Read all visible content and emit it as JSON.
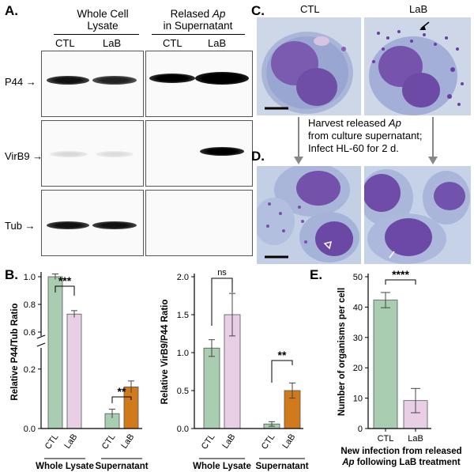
{
  "panel_a": {
    "label": "A.",
    "group1_title_line1": "Whole Cell",
    "group1_title_line2": "Lysate",
    "group2_title_line1": "Relased",
    "group2_title_ap": "Ap",
    "group2_title_line2": "in Supernatant",
    "lane_ctl": "CTL",
    "lane_lab": "LaB",
    "rows": [
      {
        "label": "P44 →"
      },
      {
        "label": "VirB9 →"
      },
      {
        "label": "Tub →"
      }
    ]
  },
  "panel_b": {
    "label": "B.",
    "chart_data": [
      {
        "type": "bar",
        "ylabel": "Relative P44/Tub Ratio",
        "y_ticks_upper": [
          "1.0",
          "0.8",
          "0.6"
        ],
        "y_ticks_lower": [
          "0.2",
          "0.0"
        ],
        "y_axis_break": true,
        "groups": [
          "Whole Lysate",
          "Supernatant"
        ],
        "categories": [
          "CTL",
          "LaB",
          "CTL",
          "LaB"
        ],
        "values": [
          1.0,
          0.73,
          0.05,
          0.14
        ],
        "errors": [
          0.02,
          0.025,
          0.015,
          0.02
        ],
        "colors": [
          "#a9cdb0",
          "#e8cfe6",
          "#a9cdb0",
          "#d07a1c"
        ],
        "significance": [
          "***",
          "**"
        ]
      },
      {
        "type": "bar",
        "ylabel": "Relative VirB9/P44 Ratio",
        "y_ticks": [
          "0.0",
          "0.5",
          "1.0",
          "1.5",
          "2.0"
        ],
        "ylim": [
          0,
          2.0
        ],
        "groups": [
          "Whole Lysate",
          "Supernatant"
        ],
        "categories": [
          "CTL",
          "LaB",
          "CTL",
          "LaB"
        ],
        "values": [
          1.06,
          1.5,
          0.06,
          0.5
        ],
        "errors": [
          0.11,
          0.28,
          0.03,
          0.1
        ],
        "colors": [
          "#a9cdb0",
          "#e8cfe6",
          "#a9cdb0",
          "#d07a1c"
        ],
        "significance": [
          "ns",
          "**"
        ]
      },
      {
        "type": "bar",
        "ylabel": "Number of organisms per cell",
        "y_ticks": [
          "0",
          "10",
          "20",
          "30",
          "40",
          "50"
        ],
        "ylim": [
          0,
          50
        ],
        "categories": [
          "CTL",
          "LaB"
        ],
        "values": [
          42.3,
          9.2
        ],
        "errors": [
          2.5,
          4.0
        ],
        "colors": [
          "#a9cdb0",
          "#e8cfe6"
        ],
        "significance": [
          "****"
        ],
        "caption_line1": "New infection from released",
        "caption_line2_ap": "Ap",
        "caption_line2_rest": "following LaB treatment"
      }
    ]
  },
  "panel_c": {
    "label": "C.",
    "ctl": "CTL",
    "lab": "LaB",
    "arrow_text_line1": "Harvest released",
    "arrow_text_ap": "Ap",
    "arrow_text_line2": "from culture supernatant;",
    "arrow_text_line3": "Infect HL-60 for 2 d."
  },
  "panel_d": {
    "label": "D."
  },
  "panel_e": {
    "label": "E."
  }
}
